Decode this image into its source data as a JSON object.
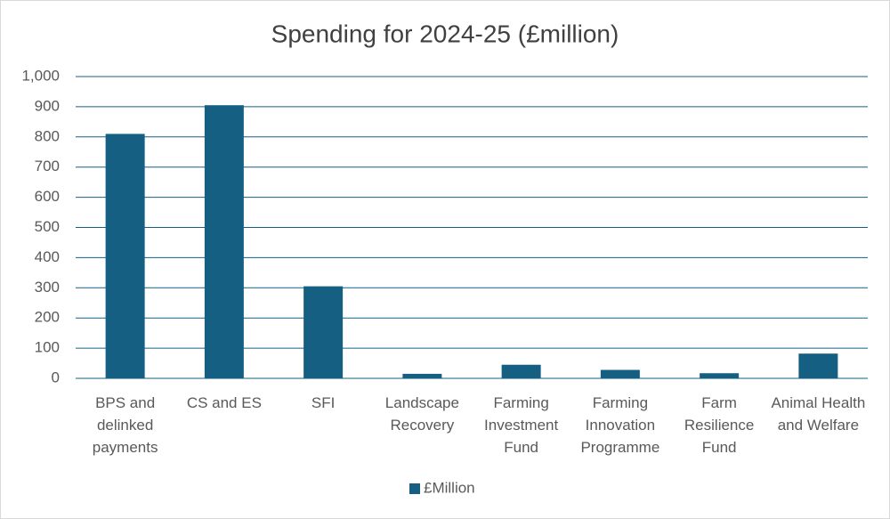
{
  "chart_data": {
    "type": "bar",
    "title": "Spending for 2024-25 (£million)",
    "categories": [
      "BPS and delinked payments",
      "CS and ES",
      "SFI",
      "Landscape Recovery",
      "Farming Investment Fund",
      "Farming Innovation Programme",
      "Farm Resilience Fund",
      "Animal Health and Welfare"
    ],
    "series": [
      {
        "name": "£Million",
        "color": "#156082",
        "values": [
          810,
          905,
          305,
          15,
          45,
          28,
          17,
          82
        ]
      }
    ],
    "ylim": [
      0,
      1000
    ],
    "yticks": [
      0,
      100,
      200,
      300,
      400,
      500,
      600,
      700,
      800,
      900,
      {
        "value": 1000,
        "label": "1,000"
      }
    ],
    "grid": true,
    "legend": "bottom"
  }
}
